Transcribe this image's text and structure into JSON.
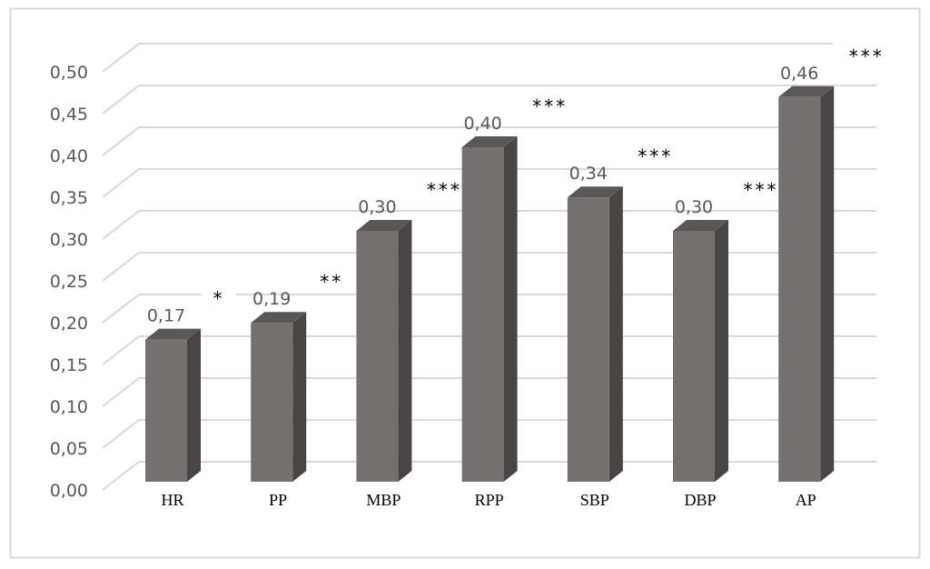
{
  "chart_data": {
    "type": "bar",
    "style": "3d-column",
    "categories": [
      "HR",
      "PP",
      "MBP",
      "RPP",
      "SBP",
      "DBP",
      "AP"
    ],
    "values": [
      0.17,
      0.19,
      0.3,
      0.4,
      0.34,
      0.3,
      0.46
    ],
    "data_labels": [
      "0,17",
      "0,19",
      "0,30",
      "0,40",
      "0,34",
      "0,30",
      "0,46"
    ],
    "significance": [
      "*",
      "**",
      "***",
      "***",
      "***",
      "***",
      "***"
    ],
    "title": "",
    "xlabel": "",
    "ylabel": "",
    "ylim": [
      0,
      0.5
    ],
    "y_ticks": [
      "0,00",
      "0,05",
      "0,10",
      "0,15",
      "0,20",
      "0,25",
      "0,30",
      "0,35",
      "0,40",
      "0,45",
      "0,50"
    ],
    "grid": true,
    "legend": "none",
    "colors": {
      "bar_front": "#757070",
      "bar_side": "#4a4545",
      "bar_top": "#5c5757",
      "grid": "#d9d9d9",
      "frame": "#d9d9d9"
    }
  }
}
